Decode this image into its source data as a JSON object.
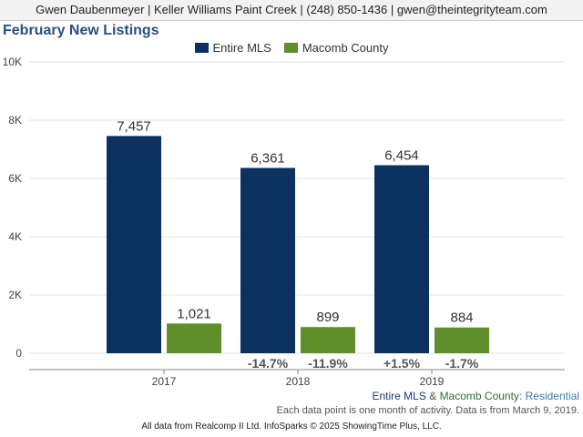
{
  "header": {
    "contact_line": "Gwen Daubenmeyer | Keller Williams Paint Creek | (248) 850-1436 | gwen@theintegrityteam.com"
  },
  "chart_data": {
    "type": "bar",
    "title": "February New Listings",
    "categories": [
      "2017",
      "2018",
      "2019"
    ],
    "ylim": [
      0,
      10000
    ],
    "yticks": [
      {
        "value": 0,
        "label": "0"
      },
      {
        "value": 2000,
        "label": "2K"
      },
      {
        "value": 4000,
        "label": "4K"
      },
      {
        "value": 6000,
        "label": "6K"
      },
      {
        "value": 8000,
        "label": "8K"
      },
      {
        "value": 10000,
        "label": "10K"
      }
    ],
    "grid": true,
    "legend": "top-center",
    "series": [
      {
        "name": "Entire MLS",
        "color": "#0c3060",
        "values": [
          7457,
          6361,
          6454
        ],
        "value_labels": [
          "7,457",
          "6,361",
          "6,454"
        ],
        "change_labels": [
          "",
          "-14.7%",
          "+1.5%"
        ]
      },
      {
        "name": "Macomb County",
        "color": "#5f8e2a",
        "values": [
          1021,
          899,
          884
        ],
        "value_labels": [
          "1,021",
          "899",
          "884"
        ],
        "change_labels": [
          "",
          "-11.9%",
          "-1.7%"
        ]
      }
    ]
  },
  "caption": {
    "series_a": "Entire MLS",
    "amp": "&",
    "series_b": "Macomb County",
    "separator": ":",
    "property_type": "Residential"
  },
  "note": "Each data point is one month of activity. Data is from March 9, 2019.",
  "footer": "All data from Realcomp II Ltd. InfoSparks © 2025 ShowingTime Plus, LLC."
}
